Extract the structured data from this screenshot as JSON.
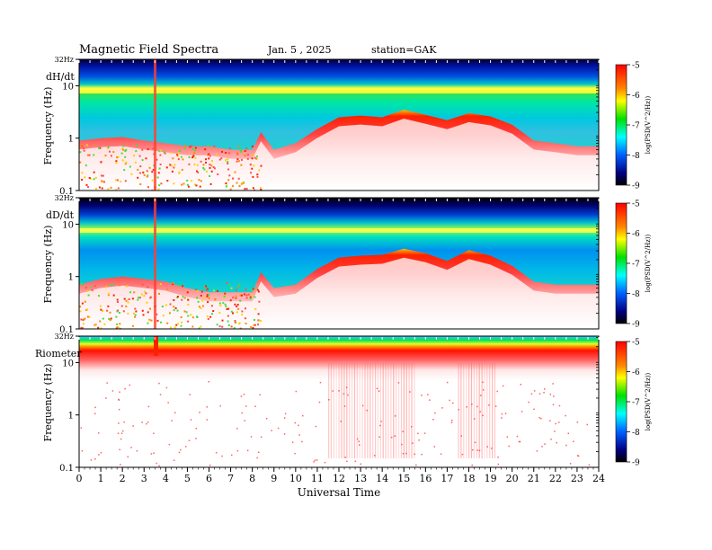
{
  "header": {
    "title": "Magnetic  Field  Spectra",
    "date": "Jan.  5  , 2025",
    "station": "station=GAK"
  },
  "x_axis": {
    "label": "Universal Time",
    "ticks": [
      "0",
      "1",
      "2",
      "3",
      "4",
      "5",
      "6",
      "7",
      "8",
      "9",
      "10",
      "11",
      "12",
      "13",
      "14",
      "15",
      "16",
      "17",
      "18",
      "19",
      "20",
      "21",
      "22",
      "23",
      "24"
    ]
  },
  "colorbar": {
    "ticks": [
      "-5",
      "-6",
      "-7",
      "-8",
      "-9"
    ],
    "label": "log(PSD(V^2/Hz))",
    "colors": [
      "#ff0000",
      "#ff8800",
      "#ffff00",
      "#00e000",
      "#00ffff",
      "#0060ff",
      "#000080",
      "#000000"
    ]
  },
  "chart_data": [
    {
      "type": "heatmap",
      "panel": "dH/dt",
      "ylabel": "Frequency (Hz)",
      "yticks": [
        "32Hz",
        "10",
        "1",
        "0.1"
      ],
      "x_range": [
        0,
        24
      ],
      "y_range_hz": [
        0.1,
        32
      ],
      "z_range_log_psd": [
        -9,
        -5
      ],
      "y_scale": "log",
      "events": [
        {
          "x": 3.6,
          "note": "broadband spike"
        }
      ],
      "red_ridge_freq_hz": [
        {
          "x": 0,
          "y": 0.9
        },
        {
          "x": 1,
          "y": 1.0
        },
        {
          "x": 2,
          "y": 1.05
        },
        {
          "x": 3,
          "y": 0.9
        },
        {
          "x": 4,
          "y": 0.8
        },
        {
          "x": 5,
          "y": 0.7
        },
        {
          "x": 6,
          "y": 0.7
        },
        {
          "x": 7,
          "y": 0.6
        },
        {
          "x": 8,
          "y": 0.6
        },
        {
          "x": 8.4,
          "y": 1.3
        },
        {
          "x": 9,
          "y": 0.6
        },
        {
          "x": 10,
          "y": 0.8
        },
        {
          "x": 11,
          "y": 1.5
        },
        {
          "x": 12,
          "y": 2.5
        },
        {
          "x": 13,
          "y": 2.7
        },
        {
          "x": 14,
          "y": 2.5
        },
        {
          "x": 15,
          "y": 3.5
        },
        {
          "x": 16,
          "y": 2.8
        },
        {
          "x": 17,
          "y": 2.2
        },
        {
          "x": 18,
          "y": 3.0
        },
        {
          "x": 19,
          "y": 2.6
        },
        {
          "x": 20,
          "y": 1.8
        },
        {
          "x": 21,
          "y": 0.9
        },
        {
          "x": 22,
          "y": 0.8
        },
        {
          "x": 23,
          "y": 0.7
        },
        {
          "x": 24,
          "y": 0.7
        }
      ]
    },
    {
      "type": "heatmap",
      "panel": "dD/dt",
      "ylabel": "Frequency (Hz)",
      "yticks": [
        "32Hz",
        "10",
        "1",
        "0.1"
      ],
      "x_range": [
        0,
        24
      ],
      "y_range_hz": [
        0.1,
        32
      ],
      "z_range_log_psd": [
        -9,
        -5
      ],
      "y_scale": "log",
      "events": [
        {
          "x": 3.6,
          "note": "broadband spike"
        }
      ],
      "red_ridge_freq_hz": [
        {
          "x": 0,
          "y": 0.7
        },
        {
          "x": 1,
          "y": 0.9
        },
        {
          "x": 2,
          "y": 1.0
        },
        {
          "x": 3,
          "y": 0.9
        },
        {
          "x": 4,
          "y": 0.8
        },
        {
          "x": 5,
          "y": 0.6
        },
        {
          "x": 6,
          "y": 0.5
        },
        {
          "x": 7,
          "y": 0.5
        },
        {
          "x": 8,
          "y": 0.5
        },
        {
          "x": 8.4,
          "y": 1.2
        },
        {
          "x": 9,
          "y": 0.6
        },
        {
          "x": 10,
          "y": 0.7
        },
        {
          "x": 11,
          "y": 1.4
        },
        {
          "x": 12,
          "y": 2.3
        },
        {
          "x": 13,
          "y": 2.5
        },
        {
          "x": 14,
          "y": 2.6
        },
        {
          "x": 15,
          "y": 3.4
        },
        {
          "x": 16,
          "y": 2.8
        },
        {
          "x": 17,
          "y": 2.0
        },
        {
          "x": 18,
          "y": 3.2
        },
        {
          "x": 19,
          "y": 2.5
        },
        {
          "x": 20,
          "y": 1.6
        },
        {
          "x": 21,
          "y": 0.8
        },
        {
          "x": 22,
          "y": 0.7
        },
        {
          "x": 23,
          "y": 0.7
        },
        {
          "x": 24,
          "y": 0.7
        }
      ]
    },
    {
      "type": "heatmap",
      "panel": "Riometer",
      "ylabel": "Frequency (Hz)",
      "yticks": [
        "32Hz",
        "10",
        "1",
        "0.1"
      ],
      "x_range": [
        0,
        24
      ],
      "y_range_hz": [
        0.1,
        32
      ],
      "z_range_log_psd": [
        -9,
        -5
      ],
      "y_scale": "log",
      "events": [
        {
          "x": 3.6,
          "note": "broadband spike"
        }
      ],
      "activity_bands_hours": [
        [
          11.5,
          15.5
        ],
        [
          17.5,
          19.2
        ]
      ]
    }
  ]
}
